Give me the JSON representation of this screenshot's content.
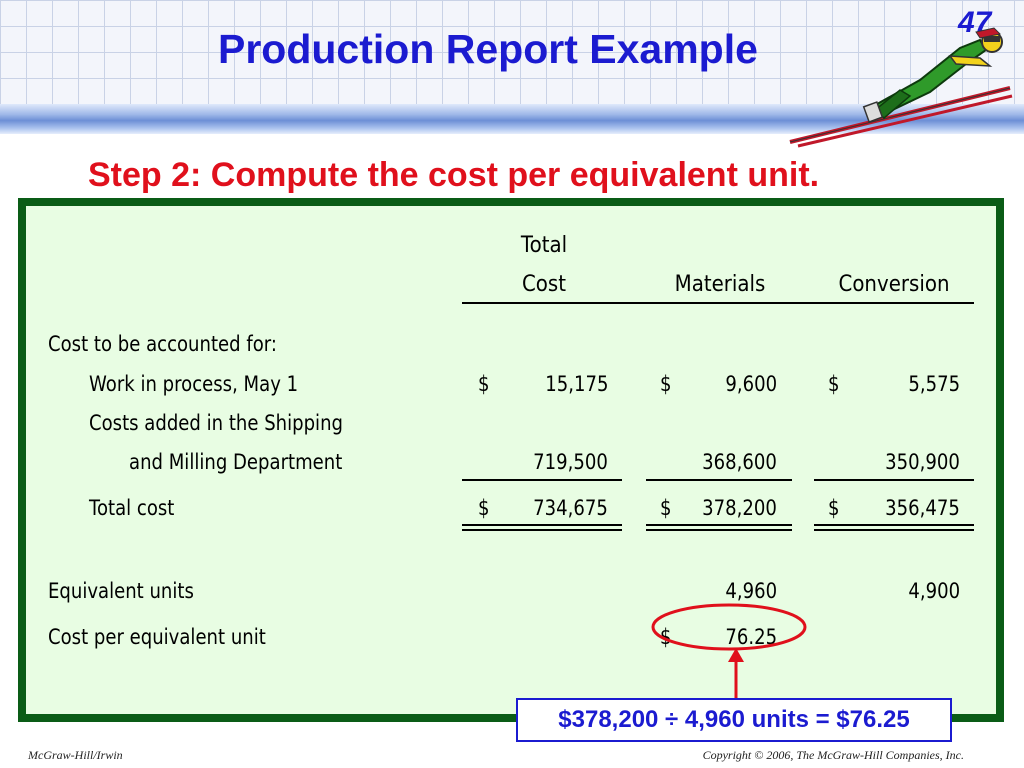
{
  "slide": {
    "title": "Production Report Example",
    "page_number": "47",
    "subtitle": "Step 2: Compute the cost per equivalent unit."
  },
  "table": {
    "headers": {
      "total_line1": "Total",
      "total_line2": "Cost",
      "materials": "Materials",
      "conversion": "Conversion"
    },
    "rows": {
      "cost_to_account": "Cost to be accounted for:",
      "wip_label": "Work in process, May 1",
      "wip_total_sign": "$",
      "wip_total": "15,175",
      "wip_materials_sign": "$",
      "wip_materials": "9,600",
      "wip_conversion_sign": "$",
      "wip_conversion": "5,575",
      "added_label_line1": "Costs added in the Shipping",
      "added_label_line2": "and Milling Department",
      "added_total": "719,500",
      "added_materials": "368,600",
      "added_conversion": "350,900",
      "total_label": "Total cost",
      "total_total_sign": "$",
      "total_total": "734,675",
      "total_materials_sign": "$",
      "total_materials": "378,200",
      "total_conversion_sign": "$",
      "total_conversion": "356,475",
      "eq_units_label": "Equivalent units",
      "eq_units_materials": "4,960",
      "eq_units_conversion": "4,900",
      "cost_per_label": "Cost per equivalent unit",
      "cost_per_materials_sign": "$",
      "cost_per_materials": "76.25"
    }
  },
  "callout": {
    "formula": "$378,200 ÷ 4,960 units = $76.25"
  },
  "footer": {
    "publisher": "McGraw-Hill/Irwin",
    "copyright": "Copyright © 2006, The McGraw-Hill Companies, Inc."
  },
  "colors": {
    "title_blue": "#1b1bd0",
    "subtitle_red": "#e0101c",
    "panel_border_green": "#0a5c16",
    "panel_fill": "#e8fde3"
  },
  "icons": {
    "decoration": "ski-jumper-icon"
  }
}
